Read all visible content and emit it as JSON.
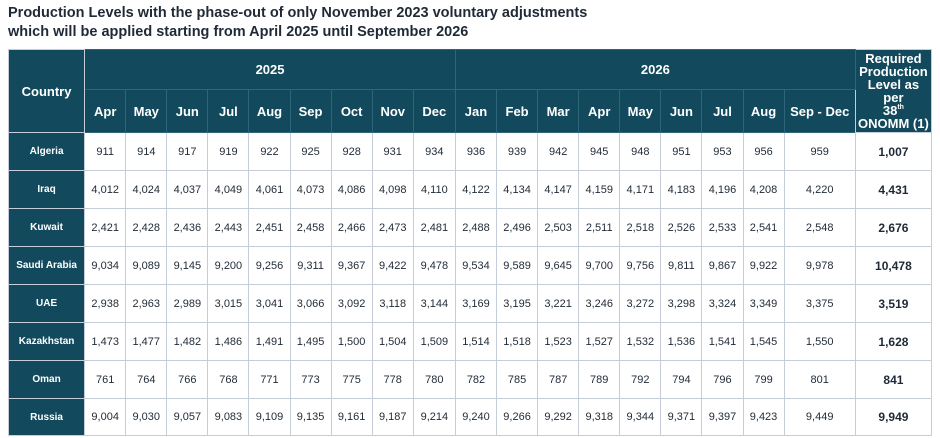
{
  "title": {
    "line1": "Production Levels with the phase-out of only November 2023 voluntary adjustments",
    "line2": "which will be applied starting from April 2025 until September 2026"
  },
  "table": {
    "country_header": "Country",
    "year_2025": "2025",
    "year_2026": "2026",
    "required_header": {
      "line1": "Required",
      "line2": "Production",
      "line3": "Level as per",
      "num": "38",
      "sup": "th",
      "line4": "ONOMM (1)"
    },
    "months_2025": [
      "Apr",
      "May",
      "Jun",
      "Jul",
      "Aug",
      "Sep",
      "Oct",
      "Nov",
      "Dec"
    ],
    "months_2026": [
      "Jan",
      "Feb",
      "Mar",
      "Apr",
      "May",
      "Jun",
      "Jul",
      "Aug",
      "Sep - Dec"
    ],
    "rows": [
      {
        "country": "Algeria",
        "values": [
          "911",
          "914",
          "917",
          "919",
          "922",
          "925",
          "928",
          "931",
          "934",
          "936",
          "939",
          "942",
          "945",
          "948",
          "951",
          "953",
          "956",
          "959"
        ],
        "required": "1,007"
      },
      {
        "country": "Iraq",
        "values": [
          "4,012",
          "4,024",
          "4,037",
          "4,049",
          "4,061",
          "4,073",
          "4,086",
          "4,098",
          "4,110",
          "4,122",
          "4,134",
          "4,147",
          "4,159",
          "4,171",
          "4,183",
          "4,196",
          "4,208",
          "4,220"
        ],
        "required": "4,431"
      },
      {
        "country": "Kuwait",
        "values": [
          "2,421",
          "2,428",
          "2,436",
          "2,443",
          "2,451",
          "2,458",
          "2,466",
          "2,473",
          "2,481",
          "2,488",
          "2,496",
          "2,503",
          "2,511",
          "2,518",
          "2,526",
          "2,533",
          "2,541",
          "2,548"
        ],
        "required": "2,676"
      },
      {
        "country": "Saudi Arabia",
        "values": [
          "9,034",
          "9,089",
          "9,145",
          "9,200",
          "9,256",
          "9,311",
          "9,367",
          "9,422",
          "9,478",
          "9,534",
          "9,589",
          "9,645",
          "9,700",
          "9,756",
          "9,811",
          "9,867",
          "9,922",
          "9,978"
        ],
        "required": "10,478"
      },
      {
        "country": "UAE",
        "values": [
          "2,938",
          "2,963",
          "2,989",
          "3,015",
          "3,041",
          "3,066",
          "3,092",
          "3,118",
          "3,144",
          "3,169",
          "3,195",
          "3,221",
          "3,246",
          "3,272",
          "3,298",
          "3,324",
          "3,349",
          "3,375"
        ],
        "required": "3,519"
      },
      {
        "country": "Kazakhstan",
        "values": [
          "1,473",
          "1,477",
          "1,482",
          "1,486",
          "1,491",
          "1,495",
          "1,500",
          "1,504",
          "1,509",
          "1,514",
          "1,518",
          "1,523",
          "1,527",
          "1,532",
          "1,536",
          "1,541",
          "1,545",
          "1,550"
        ],
        "required": "1,628"
      },
      {
        "country": "Oman",
        "values": [
          "761",
          "764",
          "766",
          "768",
          "771",
          "773",
          "775",
          "778",
          "780",
          "782",
          "785",
          "787",
          "789",
          "792",
          "794",
          "796",
          "799",
          "801"
        ],
        "required": "841"
      },
      {
        "country": "Russia",
        "values": [
          "9,004",
          "9,030",
          "9,057",
          "9,083",
          "9,109",
          "9,135",
          "9,161",
          "9,187",
          "9,214",
          "9,240",
          "9,266",
          "9,292",
          "9,318",
          "9,344",
          "9,371",
          "9,397",
          "9,423",
          "9,449"
        ],
        "required": "9,949"
      }
    ]
  }
}
